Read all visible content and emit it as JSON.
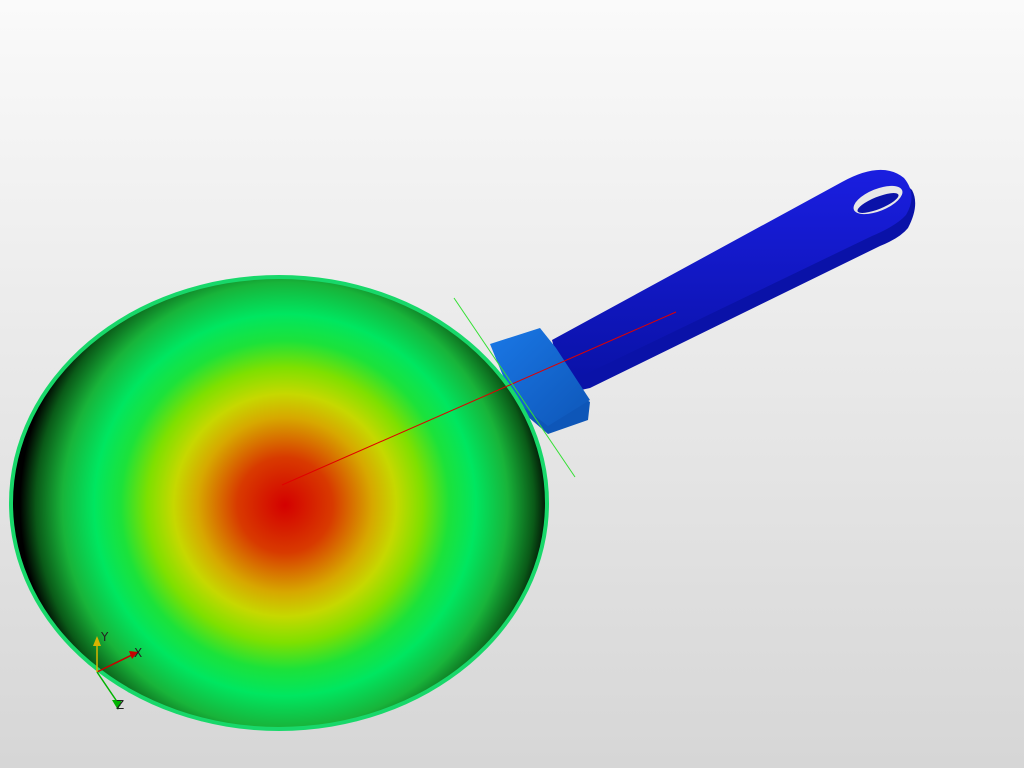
{
  "viewer": {
    "background": {
      "top_color": "#fafafa",
      "bottom_color": "#d6d6d6"
    },
    "model": {
      "part": "frying-pan",
      "colormap": [
        "#d40000",
        "#d83a00",
        "#d7a800",
        "#c6d800",
        "#7ee000",
        "#1ce23a",
        "#00e660",
        "#18b43a",
        "#0a5a18",
        "#000000"
      ],
      "pan_rim_color": "#18d86a",
      "handle_colors": {
        "grip": "#1a1ee0",
        "grip_dark": "#0a12a8",
        "collar": "#1a78e6",
        "collar_dark": "#0e56b8"
      }
    },
    "guides": {
      "axis_line_color": "#e00000",
      "plane_line_color": "#33e033"
    },
    "triad": {
      "x_label": "X",
      "y_label": "Y",
      "z_label": "Z",
      "x_color": "#c80000",
      "y_color": "#d8b400",
      "z_color": "#00b400"
    }
  }
}
